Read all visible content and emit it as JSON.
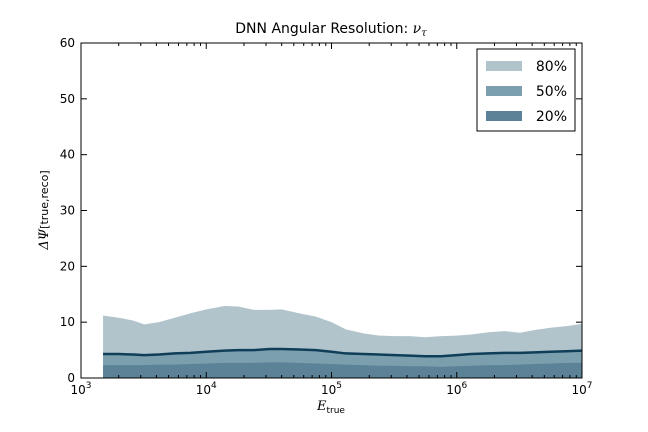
{
  "chart_data": {
    "type": "area",
    "title_text": "DNN Angular Resolution: ",
    "title_symbol": "ν",
    "title_subscript": "τ",
    "xlabel_main": "E",
    "xlabel_sub": "true",
    "ylabel_main": "ΔΨ",
    "ylabel_sub": "[true,reco]",
    "x_scale": "log",
    "xlim": [
      1000,
      10000000
    ],
    "ylim": [
      0,
      60
    ],
    "x_ticks": [
      {
        "value": 1000,
        "base": "10",
        "exp": "3"
      },
      {
        "value": 10000,
        "base": "10",
        "exp": "4"
      },
      {
        "value": 100000,
        "base": "10",
        "exp": "5"
      },
      {
        "value": 1000000,
        "base": "10",
        "exp": "6"
      },
      {
        "value": 10000000,
        "base": "10",
        "exp": "7"
      }
    ],
    "y_ticks": [
      0,
      10,
      20,
      30,
      40,
      50,
      60
    ],
    "legend_position": "top-right",
    "x": [
      1500,
      2000,
      2600,
      3200,
      4200,
      5600,
      7500,
      10000,
      14000,
      18000,
      24000,
      32000,
      40000,
      55000,
      75000,
      100000,
      130000,
      180000,
      240000,
      320000,
      420000,
      560000,
      750000,
      1000000,
      1300000,
      1800000,
      2400000,
      3200000,
      4200000,
      5600000,
      7500000,
      10000000
    ],
    "series": [
      {
        "name": "80%",
        "color": "#b1c4cc",
        "values": [
          11.2,
          10.8,
          10.3,
          9.6,
          10.0,
          10.8,
          11.6,
          12.3,
          12.9,
          12.8,
          12.2,
          12.2,
          12.3,
          11.6,
          11.0,
          10.0,
          8.7,
          8.0,
          7.6,
          7.5,
          7.5,
          7.3,
          7.5,
          7.6,
          7.8,
          8.2,
          8.4,
          8.1,
          8.6,
          9.0,
          9.3,
          9.7
        ]
      },
      {
        "name": "50%",
        "color": "#7c9fae",
        "values": [
          4.3,
          4.3,
          4.2,
          4.1,
          4.2,
          4.4,
          4.5,
          4.7,
          4.9,
          5.0,
          5.0,
          5.2,
          5.2,
          5.1,
          5.0,
          4.7,
          4.4,
          4.3,
          4.2,
          4.1,
          4.0,
          3.9,
          3.9,
          4.1,
          4.3,
          4.4,
          4.5,
          4.5,
          4.6,
          4.7,
          4.8,
          4.9
        ]
      },
      {
        "name": "20%",
        "color": "#5b8296",
        "values": [
          2.3,
          2.3,
          2.3,
          2.3,
          2.4,
          2.4,
          2.5,
          2.6,
          2.7,
          2.7,
          2.7,
          2.8,
          2.8,
          2.7,
          2.6,
          2.5,
          2.4,
          2.3,
          2.2,
          2.2,
          2.1,
          2.1,
          2.0,
          2.1,
          2.2,
          2.3,
          2.3,
          2.4,
          2.5,
          2.6,
          2.7,
          2.7
        ]
      }
    ],
    "median_line_color": "#0f3e58"
  }
}
